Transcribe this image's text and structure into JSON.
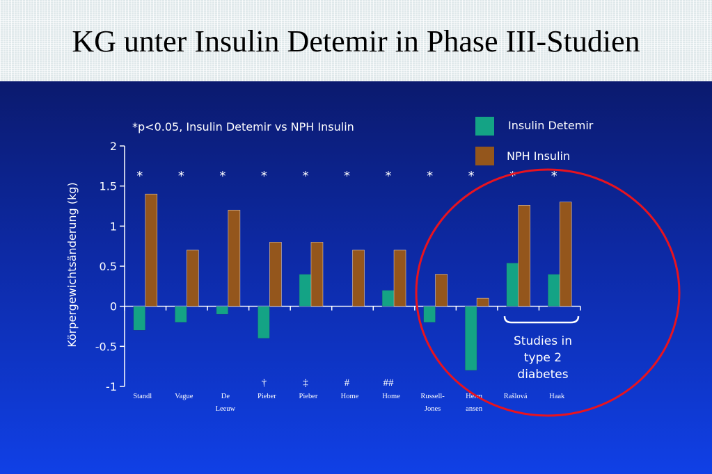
{
  "title": "KG unter Insulin Detemir in Phase III-Studien",
  "chart_data": {
    "type": "bar",
    "subtitle": "*p<0.05, Insulin Detemir vs NPH Insulin",
    "ylabel": "Körpergewichtsänderung (kg)",
    "ylim": [
      -1,
      2
    ],
    "yticks": [
      "2",
      "1.5",
      "1",
      "0.5",
      "0",
      "-0.5",
      "-1"
    ],
    "categories": [
      [
        "Standl"
      ],
      [
        "Vague"
      ],
      [
        "De",
        "Leeuw"
      ],
      [
        "Pieber"
      ],
      [
        "Pieber"
      ],
      [
        "Home"
      ],
      [
        "Home"
      ],
      [
        "Russell-",
        "Jones"
      ],
      [
        "Herm",
        "ansen"
      ],
      [
        "Rašlová"
      ],
      [
        "Haak"
      ]
    ],
    "footnote_marks": [
      "",
      "",
      "",
      "†",
      "‡",
      "#",
      "##",
      "",
      "",
      "",
      ""
    ],
    "significance_marks": [
      "*",
      "*",
      "*",
      "*",
      "*",
      "*",
      "*",
      "*",
      "*",
      "*",
      "*"
    ],
    "series": [
      {
        "name": "Insulin Detemir",
        "color": "#14a385",
        "values": [
          -0.3,
          -0.2,
          -0.1,
          -0.4,
          0.4,
          0.0,
          0.2,
          -0.2,
          -0.8,
          0.54,
          0.4
        ]
      },
      {
        "name": "NPH Insulin",
        "color": "#94561c",
        "values": [
          1.4,
          0.7,
          1.2,
          0.8,
          0.8,
          0.7,
          0.7,
          0.4,
          0.1,
          1.26,
          1.3
        ]
      }
    ],
    "annotation": {
      "lines": [
        "Studies in",
        "type 2",
        "diabetes"
      ],
      "color": "#e8131f"
    }
  }
}
